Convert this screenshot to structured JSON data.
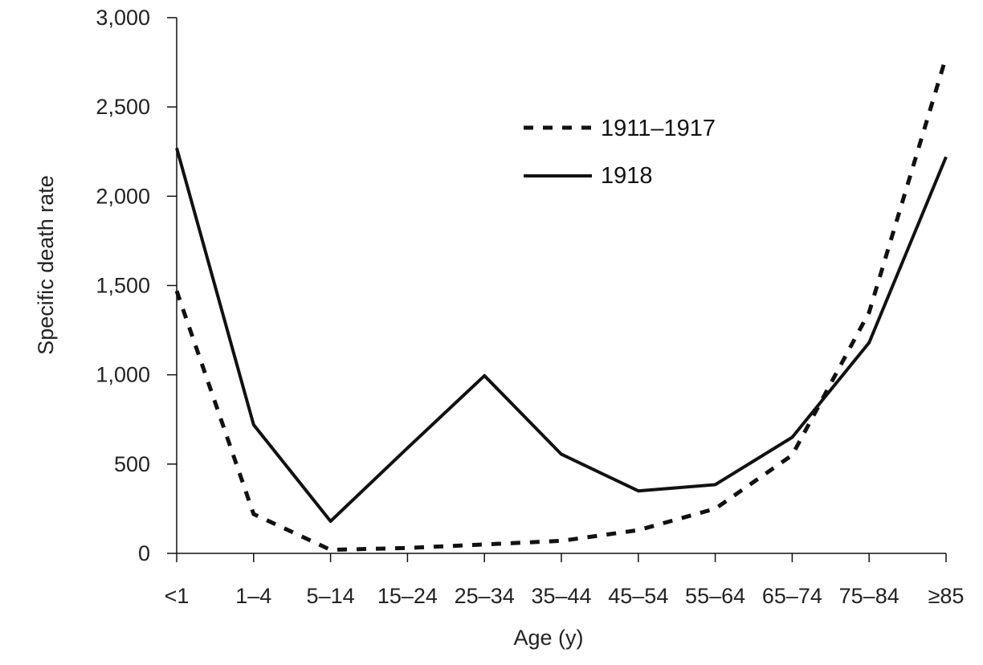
{
  "chart_data": {
    "type": "line",
    "xlabel": "Age (y)",
    "ylabel": "Specific death rate",
    "categories": [
      "<1",
      "1–4",
      "5–14",
      "15–24",
      "25–34",
      "35–44",
      "45–54",
      "55–64",
      "65–74",
      "75–84",
      "≥85"
    ],
    "ylim": [
      0,
      3000
    ],
    "yticks": [
      "0",
      "500",
      "1,000",
      "1,500",
      "2,000",
      "2,500",
      "3,000"
    ],
    "grid": false,
    "legend_position": "top-right",
    "series": [
      {
        "name": "1911–1917",
        "style": "dashed",
        "values": [
          1470,
          220,
          20,
          30,
          50,
          70,
          130,
          250,
          550,
          1350,
          2780
        ]
      },
      {
        "name": "1918",
        "style": "solid",
        "values": [
          2270,
          720,
          180,
          590,
          995,
          555,
          350,
          385,
          650,
          1180,
          2220
        ]
      }
    ]
  },
  "colors": {
    "line": "#111111",
    "axis": "#111111"
  }
}
